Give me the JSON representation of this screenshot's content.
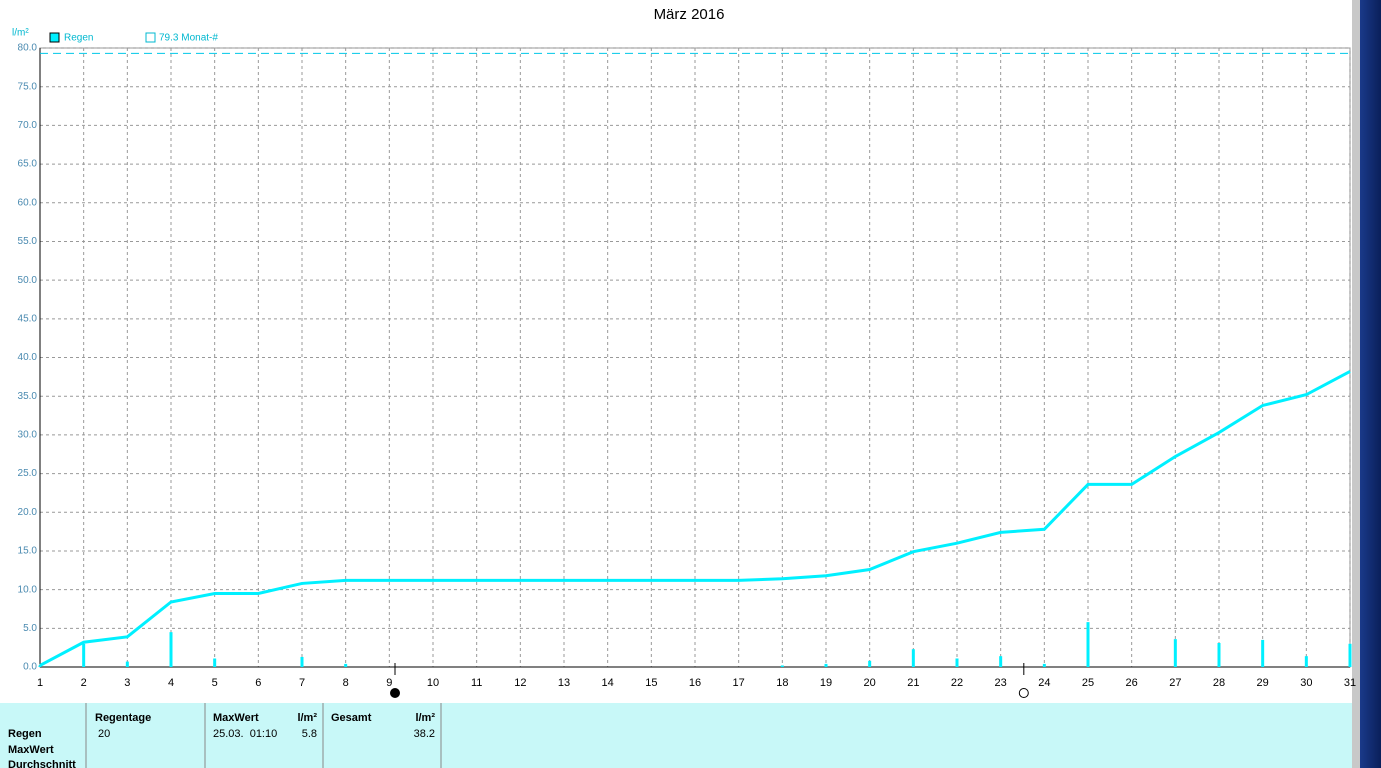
{
  "chart_data": {
    "type": "rain",
    "title": "März 2016",
    "y_unit": "l/m²",
    "x": [
      1,
      2,
      3,
      4,
      5,
      6,
      7,
      8,
      9,
      10,
      11,
      12,
      13,
      14,
      15,
      16,
      17,
      18,
      19,
      20,
      21,
      22,
      23,
      24,
      25,
      26,
      27,
      28,
      29,
      30,
      31
    ],
    "series": [
      {
        "name": "Regen",
        "color": "#00f0ff",
        "values": [
          0.2,
          3.0,
          0.7,
          4.5,
          1.1,
          0,
          1.3,
          0.4,
          0,
          0,
          0,
          0,
          0,
          0,
          0,
          0,
          0,
          0.2,
          0.4,
          0.8,
          2.3,
          1.1,
          1.4,
          0.4,
          5.8,
          0,
          3.6,
          3.1,
          3.5,
          1.4,
          3.0
        ]
      }
    ],
    "cumulative": [
      0.2,
      3.2,
      3.9,
      8.4,
      9.5,
      9.5,
      10.8,
      11.2,
      11.2,
      11.2,
      11.2,
      11.2,
      11.2,
      11.2,
      11.2,
      11.2,
      11.2,
      11.4,
      11.8,
      12.6,
      14.9,
      16.0,
      17.4,
      17.8,
      23.6,
      23.6,
      27.2,
      30.3,
      33.8,
      35.2,
      38.2
    ],
    "reference": {
      "value": 79.3,
      "label": "79.3 Monat-#"
    },
    "moon_new": 9.13,
    "moon_full": 23.53,
    "xlim": [
      1,
      31
    ],
    "xticks": [
      1,
      2,
      3,
      4,
      5,
      6,
      7,
      8,
      9,
      10,
      11,
      12,
      13,
      14,
      15,
      16,
      17,
      18,
      19,
      20,
      21,
      22,
      23,
      24,
      25,
      26,
      27,
      28,
      29,
      30,
      31
    ],
    "ylim": [
      0,
      80
    ],
    "yticks": [
      {
        "value": 0,
        "label": "0.0"
      },
      {
        "value": 5,
        "label": "5.0"
      },
      {
        "value": 10,
        "label": "10.0"
      },
      {
        "value": 15,
        "label": "15.0"
      },
      {
        "value": 20,
        "label": "20.0"
      },
      {
        "value": 25,
        "label": "25.0"
      },
      {
        "value": 30,
        "label": "30.0"
      },
      {
        "value": 35,
        "label": "35.0"
      },
      {
        "value": 40,
        "label": "40.0"
      },
      {
        "value": 45,
        "label": "45.0"
      },
      {
        "value": 50,
        "label": "50.0"
      },
      {
        "value": 55,
        "label": "55.0"
      },
      {
        "value": 60,
        "label": "60.0"
      },
      {
        "value": 65,
        "label": "65.0"
      },
      {
        "value": 70,
        "label": "70.0"
      },
      {
        "value": 75,
        "label": "75.0"
      },
      {
        "value": 80,
        "label": "80.0"
      }
    ],
    "grid": true
  },
  "table": {
    "headers": [
      "Regentage",
      "MaxWert",
      "l/m²",
      "Gesamt",
      "l/m²"
    ],
    "row_labels": [
      "Regen",
      "MaxWert",
      "Durchschnitt"
    ],
    "rows": [
      [
        20,
        "25.03.  01:10",
        5.8,
        38.2
      ]
    ]
  }
}
